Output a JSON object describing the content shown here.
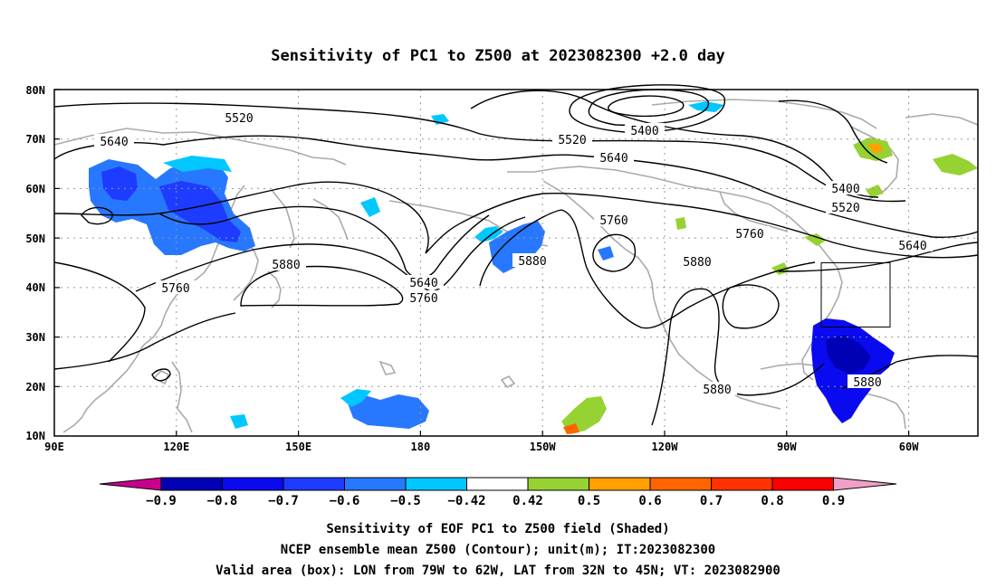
{
  "title": "Sensitivity of PC1 to Z500 at 2023082300 +2.0 day",
  "lat_labels": [
    "80N",
    "70N",
    "60N",
    "50N",
    "40N",
    "30N",
    "20N",
    "10N"
  ],
  "lon_labels": [
    "90E",
    "120E",
    "150E",
    "180",
    "150W",
    "120W",
    "90W",
    "60W"
  ],
  "contour_labels": [
    {
      "text": "5520"
    },
    {
      "text": "5640"
    },
    {
      "text": "5400"
    },
    {
      "text": "5520"
    },
    {
      "text": "5640"
    },
    {
      "text": "5760"
    },
    {
      "text": "5400"
    },
    {
      "text": "5520"
    },
    {
      "text": "5640"
    },
    {
      "text": "5760"
    },
    {
      "text": "5880"
    },
    {
      "text": "5760"
    },
    {
      "text": "5640"
    },
    {
      "text": "5760"
    },
    {
      "text": "5880"
    },
    {
      "text": "5880"
    },
    {
      "text": "5880"
    },
    {
      "text": "5880"
    }
  ],
  "colorbar": {
    "labels": [
      "−0.9",
      "−0.8",
      "−0.7",
      "−0.6",
      "−0.5",
      "−0.42",
      "0.42",
      "0.5",
      "0.6",
      "0.7",
      "0.8",
      "0.9"
    ],
    "colors": [
      "#c8008c",
      "#0000b4",
      "#0a0af0",
      "#1e3cff",
      "#2878ff",
      "#00c8ff",
      "#ffffff",
      "#96d232",
      "#ffa000",
      "#ff6400",
      "#ff3200",
      "#ff0000",
      "#f0a0c8"
    ]
  },
  "captions": [
    "Sensitivity of EOF PC1 to Z500 field (Shaded)",
    "NCEP ensemble mean Z500 (Contour); unit(m); IT:2023082300",
    "Valid area (box): LON from 79W to 62W, LAT from 32N to 45N; VT: 2023082900"
  ],
  "valid_box": {
    "lon_min": -79,
    "lon_max": -62,
    "lat_min": 32,
    "lat_max": 45
  },
  "map_extent": {
    "lon_min": 90,
    "lon_max": 317,
    "lat_min": 10,
    "lat_max": 80
  }
}
